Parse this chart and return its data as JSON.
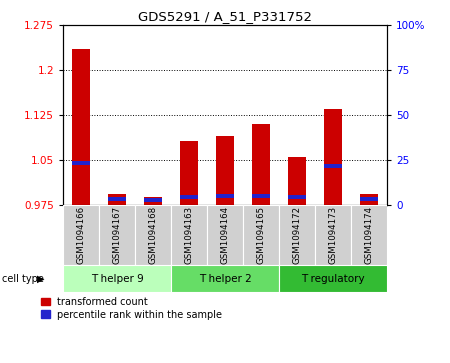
{
  "title": "GDS5291 / A_51_P331752",
  "samples": [
    "GSM1094166",
    "GSM1094167",
    "GSM1094168",
    "GSM1094163",
    "GSM1094164",
    "GSM1094165",
    "GSM1094172",
    "GSM1094173",
    "GSM1094174"
  ],
  "red_values": [
    1.235,
    0.993,
    0.988,
    1.082,
    1.09,
    1.11,
    1.055,
    1.135,
    0.993
  ],
  "blue_values": [
    1.045,
    0.985,
    0.983,
    0.988,
    0.99,
    0.99,
    0.988,
    1.04,
    0.985
  ],
  "cell_types": [
    {
      "label": "T helper 9",
      "start": 0,
      "end": 3
    },
    {
      "label": "T helper 2",
      "start": 3,
      "end": 6
    },
    {
      "label": "T regulatory",
      "start": 6,
      "end": 9
    }
  ],
  "ct_colors": [
    "#bbffbb",
    "#66dd66",
    "#33bb33"
  ],
  "ylim_left": [
    0.975,
    1.275
  ],
  "ylim_right": [
    0,
    100
  ],
  "yticks_left": [
    0.975,
    1.05,
    1.125,
    1.2,
    1.275
  ],
  "yticks_right": [
    0,
    25,
    50,
    75,
    100
  ],
  "ytick_labels_right": [
    "0",
    "25",
    "50",
    "75",
    "100%"
  ],
  "bar_color_red": "#cc0000",
  "bar_color_blue": "#2222cc",
  "bar_width": 0.5,
  "legend_red": "transformed count",
  "legend_blue": "percentile rank within the sample"
}
